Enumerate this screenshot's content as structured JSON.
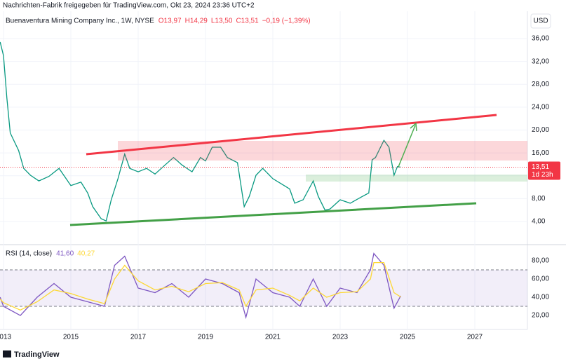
{
  "header": "Nachrichten-Fabrik freigegeben für TradingView.com, Okt 23, 2024 23:36 UTC+2",
  "currency": "USD",
  "footer": "TradingView",
  "chart_data": [
    {
      "type": "line",
      "title": "Buenaventura Mining Company Inc., 1W, NYSE",
      "legend_values": [
        "O13,97",
        "H14,29",
        "L13,50",
        "C13,51",
        "−0,19 (−1,39%)"
      ],
      "last_label": "13,51",
      "countdown": "1d 23h",
      "color": "#089981",
      "x": [
        2012.9,
        2013.0,
        2013.1,
        2013.2,
        2013.45,
        2013.6,
        2013.8,
        2014.05,
        2014.35,
        2014.65,
        2015.0,
        2015.3,
        2015.5,
        2015.65,
        2015.9,
        2016.05,
        2016.2,
        2016.4,
        2016.6,
        2016.75,
        2017.0,
        2017.25,
        2017.5,
        2017.8,
        2018.05,
        2018.3,
        2018.6,
        2018.85,
        2019.0,
        2019.2,
        2019.45,
        2019.65,
        2019.95,
        2020.15,
        2020.3,
        2020.5,
        2020.7,
        2021.0,
        2021.25,
        2021.5,
        2021.65,
        2021.9,
        2022.2,
        2022.35,
        2022.55,
        2022.7,
        2023.0,
        2023.3,
        2023.6,
        2023.85,
        2023.95,
        2024.05,
        2024.15,
        2024.3,
        2024.45,
        2024.6,
        2024.7,
        2024.8
      ],
      "values": [
        35.4,
        33,
        25.6,
        19.5,
        16.4,
        13.3,
        12.1,
        11.1,
        11.9,
        13.3,
        10.3,
        10.9,
        9.0,
        6.6,
        4.5,
        4.1,
        7.8,
        11.5,
        15.8,
        13.3,
        12.7,
        13.3,
        12.3,
        13.9,
        15.2,
        13.9,
        12.7,
        15.2,
        14.6,
        17.0,
        17.0,
        15.2,
        14.3,
        6.6,
        8.4,
        12.1,
        13.3,
        11.5,
        10.6,
        9.7,
        7.2,
        7.8,
        11.1,
        8.4,
        6.0,
        6.2,
        7.8,
        7.2,
        8.2,
        9.0,
        14.8,
        15.2,
        16.4,
        18.2,
        17.0,
        12.1,
        13.6,
        13.51
      ],
      "ylim": [
        0.45,
        40.05
      ],
      "yticks": [
        {
          "value": 4,
          "label": "4,00"
        },
        {
          "value": 8,
          "label": "8,00"
        },
        {
          "value": 12,
          "label": "12,00"
        },
        {
          "value": 16,
          "label": "16,00"
        },
        {
          "value": 20,
          "label": "20,00"
        },
        {
          "value": 24,
          "label": "24,00"
        },
        {
          "value": 28,
          "label": "28,00"
        },
        {
          "value": 32,
          "label": "32,00"
        },
        {
          "value": 36,
          "label": "36,00"
        }
      ],
      "xlim": [
        2012.896,
        2028.5625
      ],
      "xticks": [
        2013,
        2015,
        2017,
        2019,
        2021,
        2023,
        2025,
        2027
      ],
      "grid": true
    },
    {
      "type": "line",
      "title": "RSI (14, close)",
      "legend_values": [
        "41,60",
        "40,27"
      ],
      "x": [
        2012.9,
        2013.0,
        2013.5,
        2014.0,
        2014.5,
        2015.0,
        2015.5,
        2016.0,
        2016.3,
        2016.6,
        2017.0,
        2017.5,
        2018.0,
        2018.5,
        2019.0,
        2019.5,
        2020.0,
        2020.2,
        2020.5,
        2021.0,
        2021.5,
        2021.8,
        2022.2,
        2022.6,
        2023.0,
        2023.5,
        2023.9,
        2024.0,
        2024.3,
        2024.6,
        2024.8
      ],
      "series": [
        {
          "color": "#7e57c2",
          "values": [
            40,
            30,
            20,
            40,
            55,
            40,
            35,
            30,
            75,
            85,
            50,
            45,
            55,
            40,
            60,
            55,
            45,
            18,
            60,
            45,
            40,
            30,
            60,
            30,
            50,
            45,
            70,
            88,
            75,
            28,
            41.6
          ]
        },
        {
          "color": "#fdd835",
          "values": [
            38,
            34,
            26,
            35,
            48,
            44,
            38,
            33,
            60,
            75,
            58,
            48,
            52,
            46,
            55,
            56,
            48,
            30,
            48,
            50,
            42,
            36,
            50,
            40,
            45,
            46,
            60,
            78,
            78,
            45,
            40.27
          ]
        }
      ],
      "ylim": [
        6.2,
        95.4
      ],
      "yticks": [
        {
          "value": 20,
          "label": "20,00"
        },
        {
          "value": 40,
          "label": "40,00"
        },
        {
          "value": 60,
          "label": "60,00"
        },
        {
          "value": 80,
          "label": "80,00"
        }
      ],
      "band": [
        30,
        70
      ]
    }
  ]
}
